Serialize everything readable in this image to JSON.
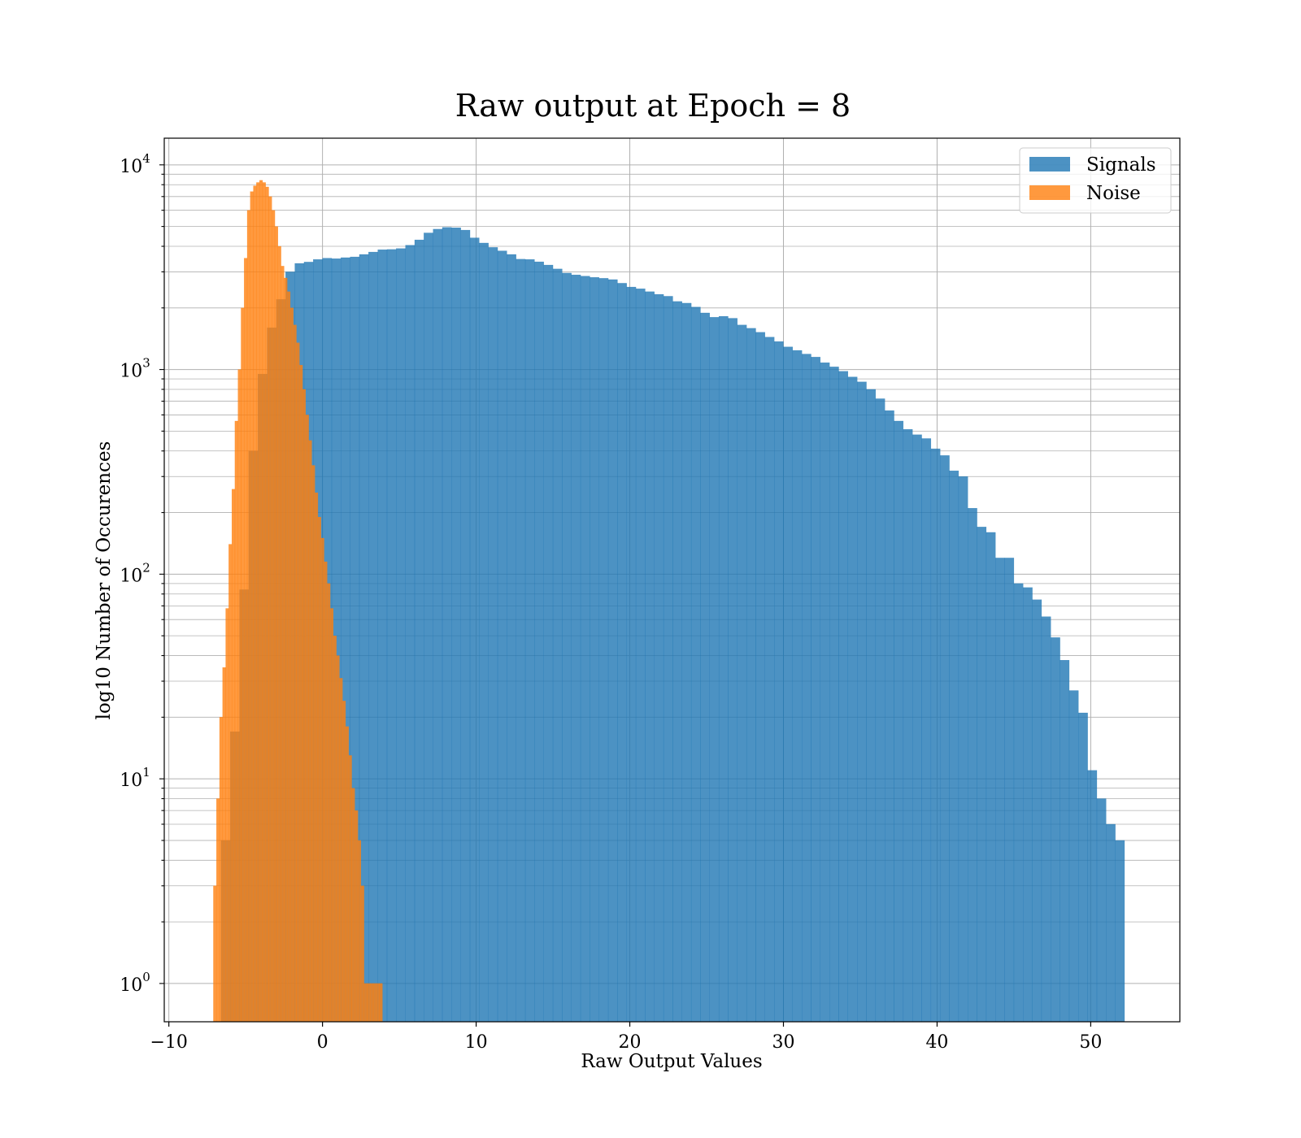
{
  "chart_data": {
    "type": "histogram",
    "title": "Raw output at Epoch = 8",
    "xlabel": "Raw Output Values",
    "ylabel": "log10 Number of Occurences",
    "xlim": [
      -10.3,
      55.8
    ],
    "ylim": [
      0.65,
      13500
    ],
    "yscale": "log",
    "grid": true,
    "legend_position": "top-right",
    "x_ticks": [
      -10,
      0,
      10,
      20,
      30,
      40,
      50
    ],
    "x_tick_labels": [
      "−10",
      "0",
      "10",
      "20",
      "30",
      "40",
      "50"
    ],
    "y_ticks": [
      1,
      10,
      100,
      1000,
      10000
    ],
    "y_tick_labels": [
      {
        "base": "10",
        "exp": "0"
      },
      {
        "base": "10",
        "exp": "1"
      },
      {
        "base": "10",
        "exp": "2"
      },
      {
        "base": "10",
        "exp": "3"
      },
      {
        "base": "10",
        "exp": "4"
      }
    ],
    "series": [
      {
        "name": "Signals",
        "color": "#1f77b4",
        "alpha": 0.8,
        "bin_start": -6.6,
        "bin_width": 0.6,
        "counts": [
          5,
          17,
          84,
          400,
          950,
          1600,
          2200,
          3000,
          3300,
          3350,
          3450,
          3500,
          3480,
          3520,
          3550,
          3650,
          3750,
          3850,
          3860,
          3900,
          4050,
          4300,
          4650,
          4850,
          4950,
          4930,
          4800,
          4400,
          4150,
          3950,
          3800,
          3650,
          3460,
          3450,
          3360,
          3240,
          3100,
          2960,
          2900,
          2860,
          2820,
          2790,
          2750,
          2640,
          2530,
          2480,
          2400,
          2330,
          2280,
          2150,
          2110,
          2020,
          1890,
          1800,
          1820,
          1780,
          1650,
          1590,
          1520,
          1440,
          1370,
          1290,
          1240,
          1190,
          1150,
          1080,
          1030,
          980,
          920,
          870,
          800,
          720,
          630,
          560,
          510,
          480,
          460,
          410,
          380,
          320,
          300,
          210,
          170,
          160,
          120,
          120,
          90,
          86,
          75,
          62,
          49,
          38,
          27,
          21,
          11,
          8,
          6,
          5
        ]
      },
      {
        "name": "Noise",
        "color": "#ff7f0e",
        "alpha": 0.8,
        "bin_start": -7.3,
        "bin_width": 0.2,
        "counts": [
          0,
          3,
          8,
          20,
          35,
          68,
          140,
          260,
          560,
          1000,
          2000,
          3500,
          6000,
          7400,
          7900,
          8200,
          8400,
          8200,
          7800,
          7000,
          6000,
          5000,
          4000,
          3200,
          2800,
          2400,
          2000,
          1650,
          1350,
          1050,
          800,
          600,
          450,
          340,
          250,
          190,
          150,
          115,
          90,
          68,
          50,
          40,
          31,
          24,
          18,
          13,
          9,
          7,
          5,
          3,
          1,
          1,
          1,
          1,
          1,
          1
        ]
      }
    ]
  }
}
